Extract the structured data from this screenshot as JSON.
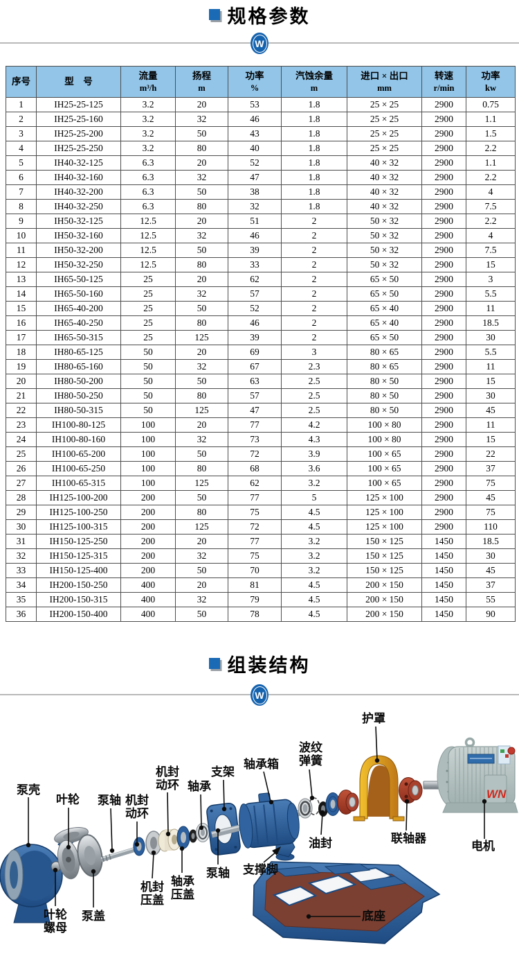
{
  "sections": [
    {
      "title": "规格参数"
    },
    {
      "title": "组装结构"
    }
  ],
  "watermark": "W",
  "accent_blue": "#1a6ab5",
  "table": {
    "header_bg": "#92c5e8",
    "columns": [
      {
        "title": "序号",
        "unit": ""
      },
      {
        "title": "型    号",
        "unit": ""
      },
      {
        "title": "流量",
        "unit": "m³/h"
      },
      {
        "title": "扬程",
        "unit": "m"
      },
      {
        "title": "功率",
        "unit": "%"
      },
      {
        "title": "汽蚀余量",
        "unit": "m"
      },
      {
        "title": "进口 × 出口",
        "unit": "mm"
      },
      {
        "title": "转速",
        "unit": "r/min"
      },
      {
        "title": "功率",
        "unit": "kw"
      }
    ],
    "rows": [
      [
        "1",
        "IH25-25-125",
        "3.2",
        "20",
        "53",
        "1.8",
        "25 × 25",
        "2900",
        "0.75"
      ],
      [
        "2",
        "IH25-25-160",
        "3.2",
        "32",
        "46",
        "1.8",
        "25 × 25",
        "2900",
        "1.1"
      ],
      [
        "3",
        "IH25-25-200",
        "3.2",
        "50",
        "43",
        "1.8",
        "25 × 25",
        "2900",
        "1.5"
      ],
      [
        "4",
        "IH25-25-250",
        "3.2",
        "80",
        "40",
        "1.8",
        "25 × 25",
        "2900",
        "2.2"
      ],
      [
        "5",
        "IH40-32-125",
        "6.3",
        "20",
        "52",
        "1.8",
        "40 × 32",
        "2900",
        "1.1"
      ],
      [
        "6",
        "IH40-32-160",
        "6.3",
        "32",
        "47",
        "1.8",
        "40 × 32",
        "2900",
        "2.2"
      ],
      [
        "7",
        "IH40-32-200",
        "6.3",
        "50",
        "38",
        "1.8",
        "40 × 32",
        "2900",
        "4"
      ],
      [
        "8",
        "IH40-32-250",
        "6.3",
        "80",
        "32",
        "1.8",
        "40 × 32",
        "2900",
        "7.5"
      ],
      [
        "9",
        "IH50-32-125",
        "12.5",
        "20",
        "51",
        "2",
        "50 × 32",
        "2900",
        "2.2"
      ],
      [
        "10",
        "IH50-32-160",
        "12.5",
        "32",
        "46",
        "2",
        "50 × 32",
        "2900",
        "4"
      ],
      [
        "11",
        "IH50-32-200",
        "12.5",
        "50",
        "39",
        "2",
        "50 × 32",
        "2900",
        "7.5"
      ],
      [
        "12",
        "IH50-32-250",
        "12.5",
        "80",
        "33",
        "2",
        "50 × 32",
        "2900",
        "15"
      ],
      [
        "13",
        "IH65-50-125",
        "25",
        "20",
        "62",
        "2",
        "65 × 50",
        "2900",
        "3"
      ],
      [
        "14",
        "IH65-50-160",
        "25",
        "32",
        "57",
        "2",
        "65 × 50",
        "2900",
        "5.5"
      ],
      [
        "15",
        "IH65-40-200",
        "25",
        "50",
        "52",
        "2",
        "65 × 40",
        "2900",
        "11"
      ],
      [
        "16",
        "IH65-40-250",
        "25",
        "80",
        "46",
        "2",
        "65 × 40",
        "2900",
        "18.5"
      ],
      [
        "17",
        "IH65-50-315",
        "25",
        "125",
        "39",
        "2",
        "65 × 50",
        "2900",
        "30"
      ],
      [
        "18",
        "IH80-65-125",
        "50",
        "20",
        "69",
        "3",
        "80 × 65",
        "2900",
        "5.5"
      ],
      [
        "19",
        "IH80-65-160",
        "50",
        "32",
        "67",
        "2.3",
        "80 × 65",
        "2900",
        "11"
      ],
      [
        "20",
        "IH80-50-200",
        "50",
        "50",
        "63",
        "2.5",
        "80 × 50",
        "2900",
        "15"
      ],
      [
        "21",
        "IH80-50-250",
        "50",
        "80",
        "57",
        "2.5",
        "80 × 50",
        "2900",
        "30"
      ],
      [
        "22",
        "IH80-50-315",
        "50",
        "125",
        "47",
        "2.5",
        "80 × 50",
        "2900",
        "45"
      ],
      [
        "23",
        "IH100-80-125",
        "100",
        "20",
        "77",
        "4.2",
        "100 × 80",
        "2900",
        "11"
      ],
      [
        "24",
        "IH100-80-160",
        "100",
        "32",
        "73",
        "4.3",
        "100 × 80",
        "2900",
        "15"
      ],
      [
        "25",
        "IH100-65-200",
        "100",
        "50",
        "72",
        "3.9",
        "100 × 65",
        "2900",
        "22"
      ],
      [
        "26",
        "IH100-65-250",
        "100",
        "80",
        "68",
        "3.6",
        "100 × 65",
        "2900",
        "37"
      ],
      [
        "27",
        "IH100-65-315",
        "100",
        "125",
        "62",
        "3.2",
        "100 × 65",
        "2900",
        "75"
      ],
      [
        "28",
        "IH125-100-200",
        "200",
        "50",
        "77",
        "5",
        "125 × 100",
        "2900",
        "45"
      ],
      [
        "29",
        "IH125-100-250",
        "200",
        "80",
        "75",
        "4.5",
        "125 × 100",
        "2900",
        "75"
      ],
      [
        "30",
        "IH125-100-315",
        "200",
        "125",
        "72",
        "4.5",
        "125 × 100",
        "2900",
        "110"
      ],
      [
        "31",
        "IH150-125-250",
        "200",
        "20",
        "77",
        "3.2",
        "150 × 125",
        "1450",
        "18.5"
      ],
      [
        "32",
        "IH150-125-315",
        "200",
        "32",
        "75",
        "3.2",
        "150 × 125",
        "1450",
        "30"
      ],
      [
        "33",
        "IH150-125-400",
        "200",
        "50",
        "70",
        "3.2",
        "150 × 125",
        "1450",
        "45"
      ],
      [
        "34",
        "IH200-150-250",
        "400",
        "20",
        "81",
        "4.5",
        "200 × 150",
        "1450",
        "37"
      ],
      [
        "35",
        "IH200-150-315",
        "400",
        "32",
        "79",
        "4.5",
        "200 × 150",
        "1450",
        "55"
      ],
      [
        "36",
        "IH200-150-400",
        "400",
        "50",
        "78",
        "4.5",
        "200 × 150",
        "1450",
        "90"
      ]
    ]
  },
  "diagram": {
    "motor_logo": "WN",
    "labels": [
      {
        "id": "pump-casing",
        "text": "泵壳"
      },
      {
        "id": "impeller",
        "text": "叶轮"
      },
      {
        "id": "pump-shaft-front",
        "text": "泵轴"
      },
      {
        "id": "seal-rotating-ring-1",
        "text": "机封动环"
      },
      {
        "id": "seal-rotating-ring-2",
        "text": "机封动环"
      },
      {
        "id": "bearing",
        "text": "轴承"
      },
      {
        "id": "bracket",
        "text": "支架"
      },
      {
        "id": "bearing-box",
        "text": "轴承箱"
      },
      {
        "id": "wave-spring",
        "text": "波纹弹簧"
      },
      {
        "id": "guard",
        "text": "护罩"
      },
      {
        "id": "impeller-nut",
        "text": "叶轮螺母"
      },
      {
        "id": "pump-cover",
        "text": "泵盖"
      },
      {
        "id": "seal-gland",
        "text": "机封压盖"
      },
      {
        "id": "bearing-gland",
        "text": "轴承压盖"
      },
      {
        "id": "pump-shaft-main",
        "text": "泵轴"
      },
      {
        "id": "support-foot",
        "text": "支撑脚"
      },
      {
        "id": "oil-seal",
        "text": "油封"
      },
      {
        "id": "coupling",
        "text": "联轴器"
      },
      {
        "id": "motor",
        "text": "电机"
      },
      {
        "id": "base",
        "text": "底座"
      }
    ]
  }
}
